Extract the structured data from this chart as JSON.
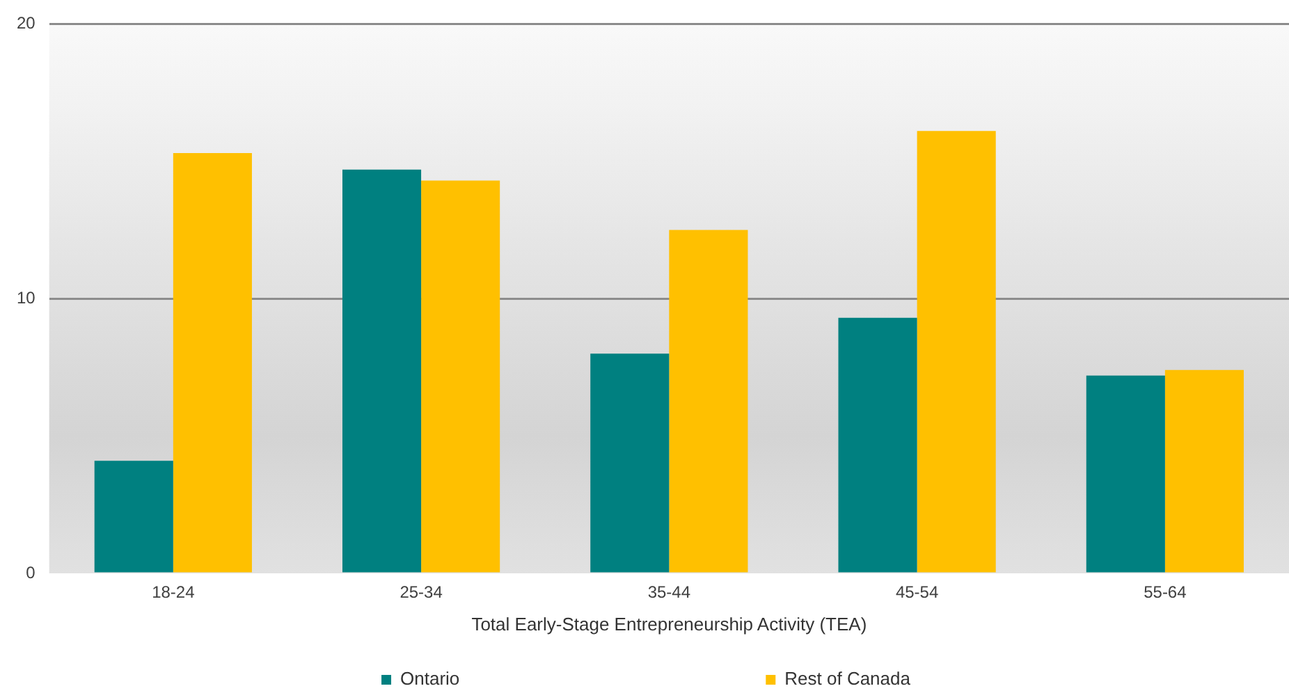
{
  "chart_data": {
    "type": "bar",
    "xlabel": "Total Early-Stage Entrepreneurship Activity (TEA)",
    "categories": [
      "18-24",
      "25-34",
      "35-44",
      "45-54",
      "55-64"
    ],
    "series": [
      {
        "name": "Ontario",
        "color": "#008080",
        "values": [
          4.1,
          14.7,
          8.0,
          9.3,
          7.2
        ]
      },
      {
        "name": "Rest of Canada",
        "color": "#ffc000",
        "values": [
          15.3,
          14.3,
          12.5,
          16.1,
          7.4
        ]
      }
    ],
    "ylim": [
      0,
      20
    ],
    "yticks": [
      0,
      10,
      20
    ],
    "grid": "y",
    "legend": "bottom"
  }
}
